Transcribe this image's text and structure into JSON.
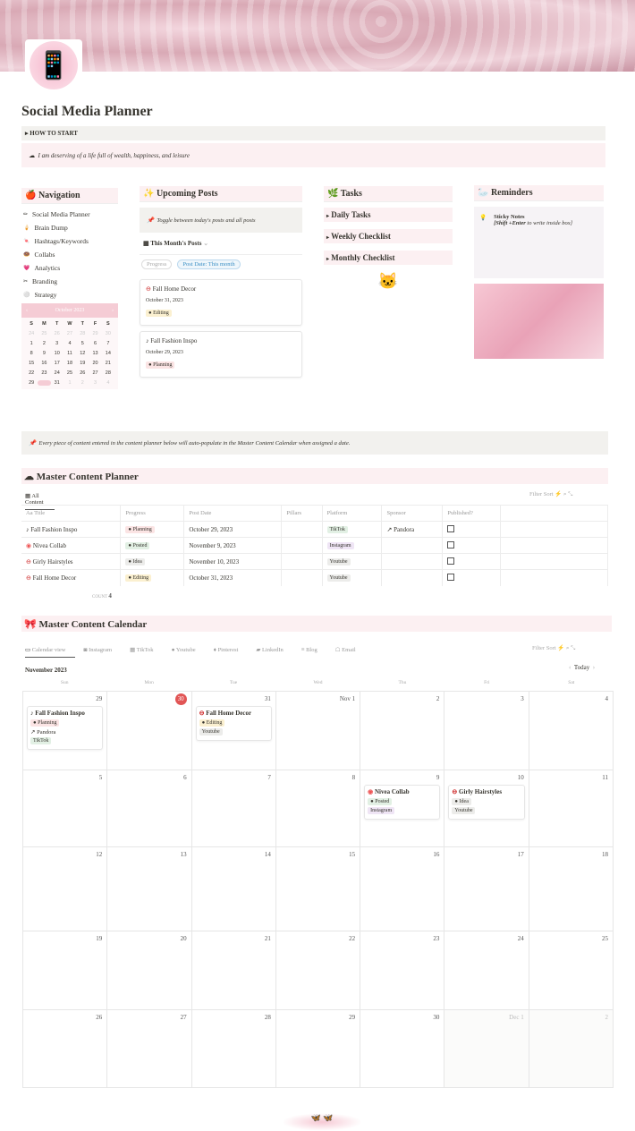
{
  "title": "Social Media Planner",
  "how_to_start": "HOW TO START",
  "affirmation": "I am deserving of a life full of wealth, happiness, and leisure",
  "navigation": {
    "title": "Navigation",
    "items": [
      "Social Media Planner",
      "Brain Dump",
      "Hashtags/Keywords",
      "Collabs",
      "Analytics",
      "Branding",
      "Strategy"
    ],
    "mini_calendar": {
      "month": "October 2023",
      "weekdays": [
        "S",
        "M",
        "T",
        "W",
        "T",
        "F",
        "S"
      ],
      "days": [
        "24",
        "25",
        "26",
        "27",
        "28",
        "29",
        "30",
        "1",
        "2",
        "3",
        "4",
        "5",
        "6",
        "7",
        "8",
        "9",
        "10",
        "11",
        "12",
        "13",
        "14",
        "15",
        "16",
        "17",
        "18",
        "19",
        "20",
        "21",
        "22",
        "23",
        "24",
        "25",
        "26",
        "27",
        "28",
        "29",
        "30",
        "31",
        "1",
        "2",
        "3",
        "4"
      ],
      "selected": "30"
    }
  },
  "upcoming": {
    "title": "Upcoming Posts",
    "callout": "Toggle between today's posts and all posts",
    "view": "This Month's Posts",
    "filters": [
      "Progress",
      "Post Date: This month"
    ],
    "cards": [
      {
        "title": "Fall Home Decor",
        "date": "October 31, 2023",
        "status": "Editing"
      },
      {
        "title": "Fall Fashion Inspo",
        "date": "October 29, 2023",
        "status": "Planning"
      }
    ]
  },
  "tasks": {
    "title": "Tasks",
    "items": [
      "Daily Tasks",
      "Weekly Checklist",
      "Monthly Checklist"
    ]
  },
  "reminders": {
    "title": "Reminders",
    "note_title": "Sticky Notes",
    "note_bold": "[Shift +Enter",
    "note_rest": " to write inside box]"
  },
  "auto_callout": "Every piece of content entered in the content planner below will auto-populate in the Master Content Calendar when assigned a date.",
  "planner": {
    "title": "Master Content Planner",
    "view": "All Content",
    "tools": [
      "Filter",
      "Sort"
    ],
    "columns": [
      "Aa Title",
      "Progress",
      "Post Date",
      "Pillars",
      "Platform",
      "Sponsor",
      "Published?"
    ],
    "rows": [
      {
        "title": "Fall Fashion Inspo",
        "progress": "Planning",
        "date": "October 29, 2023",
        "pillars": "",
        "platform": "TikTok",
        "sponsor": "Pandora",
        "published": false
      },
      {
        "title": "Nivea Collab",
        "progress": "Posted",
        "date": "November 9, 2023",
        "pillars": "",
        "platform": "Instagram",
        "sponsor": "",
        "published": false
      },
      {
        "title": "Girly Hairstyles",
        "progress": "Idea",
        "date": "November 10, 2023",
        "pillars": "",
        "platform": "Youtube",
        "sponsor": "",
        "published": false
      },
      {
        "title": "Fall Home Decor",
        "progress": "Editing",
        "date": "October 31, 2023",
        "pillars": "",
        "platform": "Youtube",
        "sponsor": "",
        "published": false
      }
    ],
    "count_label": "COUNT",
    "count": "4"
  },
  "calendar": {
    "title": "Master Content Calendar",
    "tabs": [
      "Calendar view",
      "Instagram",
      "TikTok",
      "Youtube",
      "Pinterest",
      "LinkedIn",
      "Blog",
      "Email"
    ],
    "tools": [
      "Filter",
      "Sort"
    ],
    "month": "November 2023",
    "today": "Today",
    "weekdays": [
      "Sun",
      "Mon",
      "Tue",
      "Wed",
      "Thu",
      "Fri",
      "Sat"
    ],
    "days": [
      "29",
      "30",
      "31",
      "Nov 1",
      "2",
      "3",
      "4",
      "5",
      "6",
      "7",
      "8",
      "9",
      "10",
      "11",
      "12",
      "13",
      "14",
      "15",
      "16",
      "17",
      "18",
      "19",
      "20",
      "21",
      "22",
      "23",
      "24",
      "25",
      "26",
      "27",
      "28",
      "29",
      "30",
      "Dec 1",
      "2"
    ],
    "today_day": "30"
  },
  "colors": {
    "Planning": "#fbe4e4",
    "Posted": "#e2f0e4",
    "Idea": "#ececea",
    "Editing": "#fbf0d0",
    "TikTok": "#e2f0e4",
    "Instagram": "#efe5f5",
    "Youtube": "#ececea"
  }
}
